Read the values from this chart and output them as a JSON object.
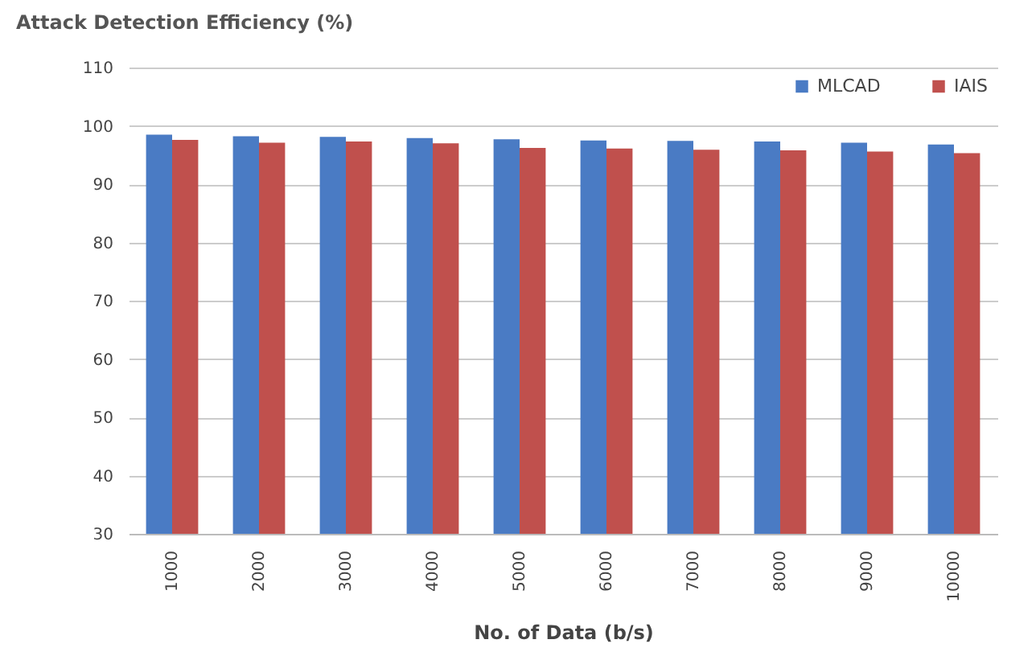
{
  "chart_data": {
    "type": "bar",
    "title": "Attack Detection Efficiency (%)",
    "xlabel": "No. of Data (b/s)",
    "categories": [
      "1000",
      "2000",
      "3000",
      "4000",
      "5000",
      "6000",
      "7000",
      "8000",
      "9000",
      "10000"
    ],
    "series": [
      {
        "name": "MLCAD",
        "color": "#4a7bc4",
        "values": [
          98.5,
          98.2,
          98.1,
          97.9,
          97.7,
          97.5,
          97.4,
          97.3,
          97.1,
          96.8
        ]
      },
      {
        "name": "IAIS",
        "color": "#c0504d",
        "values": [
          97.6,
          97.1,
          97.3,
          97.0,
          96.2,
          96.1,
          95.9,
          95.8,
          95.6,
          95.3
        ]
      }
    ],
    "ylim": [
      30,
      110
    ],
    "yticks": [
      30,
      40,
      50,
      60,
      70,
      80,
      90,
      100,
      110
    ],
    "grid": "y",
    "legend": "top right"
  }
}
